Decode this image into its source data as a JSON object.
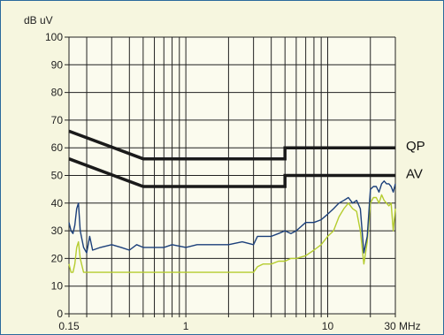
{
  "chart_data": {
    "type": "line",
    "ylabel": "dB uV",
    "xlabel": "",
    "x_unit": "MHz",
    "x_scale": "log",
    "xlim": [
      0.15,
      30
    ],
    "ylim": [
      0,
      100
    ],
    "y_ticks": [
      0,
      10,
      20,
      30,
      40,
      50,
      60,
      70,
      80,
      90,
      100
    ],
    "x_tick_labels": [
      {
        "value": 0.15,
        "label": "0.15"
      },
      {
        "value": 1,
        "label": "1"
      },
      {
        "value": 10,
        "label": "10"
      },
      {
        "value": 30,
        "label": "30 MHz"
      }
    ],
    "grid": true,
    "colors": {
      "limits": "#1a1a1a",
      "series1": "#1b3f7a",
      "series2": "#b5cc2e",
      "grid": "#222222"
    },
    "limits": [
      {
        "name": "QP",
        "x": [
          0.15,
          0.5,
          5,
          5,
          30
        ],
        "y": [
          66,
          56,
          56,
          60,
          60
        ]
      },
      {
        "name": "AV",
        "x": [
          0.15,
          0.5,
          5,
          5,
          30
        ],
        "y": [
          56,
          46,
          46,
          50,
          50
        ]
      }
    ],
    "series": [
      {
        "x": [
          0.15,
          0.155,
          0.16,
          0.165,
          0.17,
          0.175,
          0.18,
          0.19,
          0.2,
          0.21,
          0.22,
          0.25,
          0.3,
          0.35,
          0.4,
          0.45,
          0.5,
          0.6,
          0.7,
          0.8,
          1,
          1.2,
          1.5,
          2,
          2.5,
          3,
          3.2,
          3.5,
          4,
          4.5,
          5,
          5.5,
          6,
          7,
          8,
          9,
          10,
          11,
          12,
          13,
          14,
          15,
          16,
          17,
          18,
          19,
          20,
          21,
          22,
          23,
          24,
          25,
          26,
          27,
          28,
          29,
          30
        ],
        "y": [
          33,
          30,
          29,
          32,
          38,
          40,
          30,
          24,
          22,
          28,
          23,
          24,
          25,
          24,
          23,
          25,
          24,
          24,
          24,
          25,
          24,
          25,
          25,
          25,
          26,
          25,
          28,
          28,
          28,
          29,
          30,
          29,
          30,
          33,
          33,
          34,
          36,
          38,
          40,
          41,
          42,
          40,
          41,
          38,
          22,
          28,
          45,
          46,
          46,
          44,
          47,
          48,
          47,
          47,
          46,
          44,
          47
        ]
      },
      {
        "x": [
          0.15,
          0.155,
          0.16,
          0.165,
          0.17,
          0.175,
          0.18,
          0.19,
          0.2,
          0.22,
          0.25,
          0.3,
          0.35,
          0.4,
          0.45,
          0.5,
          0.6,
          0.7,
          0.8,
          1,
          1.2,
          1.5,
          2,
          2.5,
          3,
          3.2,
          3.5,
          4,
          4.5,
          5,
          5.5,
          6,
          7,
          8,
          9,
          10,
          11,
          12,
          13,
          14,
          15,
          16,
          17,
          18,
          19,
          20,
          21,
          22,
          23,
          24,
          25,
          26,
          27,
          28,
          29,
          30
        ],
        "y": [
          18,
          15,
          15,
          18,
          24,
          26,
          20,
          15,
          15,
          15,
          15,
          15,
          15,
          15,
          15,
          15,
          15,
          15,
          15,
          15,
          15,
          15,
          15,
          15,
          15,
          17,
          18,
          18,
          19,
          19,
          20,
          20,
          21,
          23,
          25,
          28,
          30,
          35,
          38,
          40,
          38,
          37,
          30,
          18,
          26,
          40,
          42,
          42,
          40,
          43,
          41,
          40,
          39,
          40,
          30,
          38
        ]
      }
    ]
  }
}
